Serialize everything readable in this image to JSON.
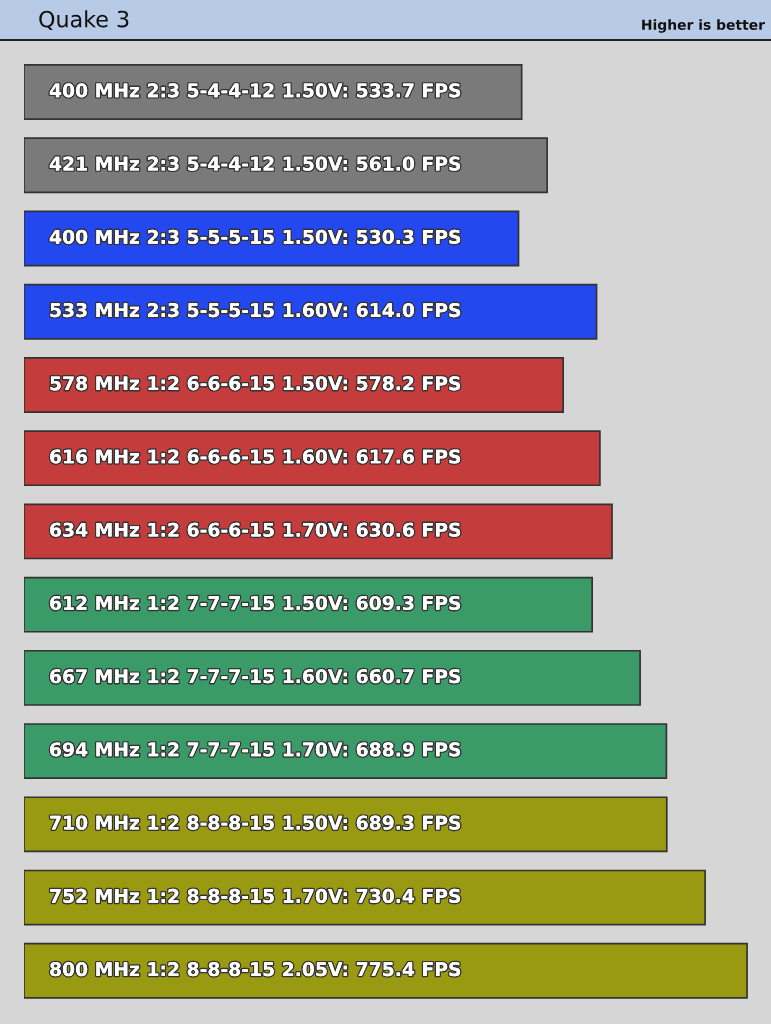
{
  "chart_data": {
    "type": "bar",
    "orientation": "horizontal",
    "title": "Quake 3",
    "annotations": [
      "Higher is better"
    ],
    "categories": [
      null,
      null,
      null,
      null,
      null,
      null,
      null,
      null,
      null,
      null,
      null,
      null,
      null
    ],
    "values": [
      533.7,
      561.0,
      530.3,
      614.0,
      578.2,
      617.6,
      630.6,
      609.3,
      660.7,
      688.9,
      689.3,
      730.4,
      775.4
    ],
    "colors": [
      "#7a7a7a",
      "#7a7a7a",
      "#2448f0",
      "#2448f0",
      "#c43c3c",
      "#c43c3c",
      "#c43c3c",
      "#3a9a68",
      "#3a9a68",
      "#3a9a68",
      "#9a9a12",
      "#9a9a12",
      "#9a9a12"
    ],
    "value_labels": [
      "400 MHz 2:3 5-4-4-12 1.50V: 533.7 FPS",
      "421 MHz 2:3 5-4-4-12 1.50V: 561.0 FPS",
      "400 MHz 2:3 5-5-5-15 1.50V: 530.3 FPS",
      "533 MHz 2:3 5-5-5-15 1.60V: 614.0 FPS",
      "578 MHz 1:2 6-6-6-15 1.50V: 578.2 FPS",
      "616 MHz 1:2 6-6-6-15 1.60V: 617.6 FPS",
      "634 MHz 1:2 6-6-6-15 1.70V: 630.6 FPS",
      "612 MHz 1:2 7-7-7-15 1.50V: 609.3 FPS",
      "667 MHz 1:2 7-7-7-15 1.60V: 660.7 FPS",
      "694 MHz 1:2 7-7-7-15 1.70V: 688.9 FPS",
      "710 MHz 1:2 8-8-8-15 1.50V: 689.3 FPS",
      "752 MHz 1:2 8-8-8-15 1.70V: 730.4 FPS",
      "800 MHz 1:2 8-8-8-15 2.05V: 775.4 FPS"
    ],
    "xlim": [
      0,
      800
    ],
    "tick_labels": false
  }
}
